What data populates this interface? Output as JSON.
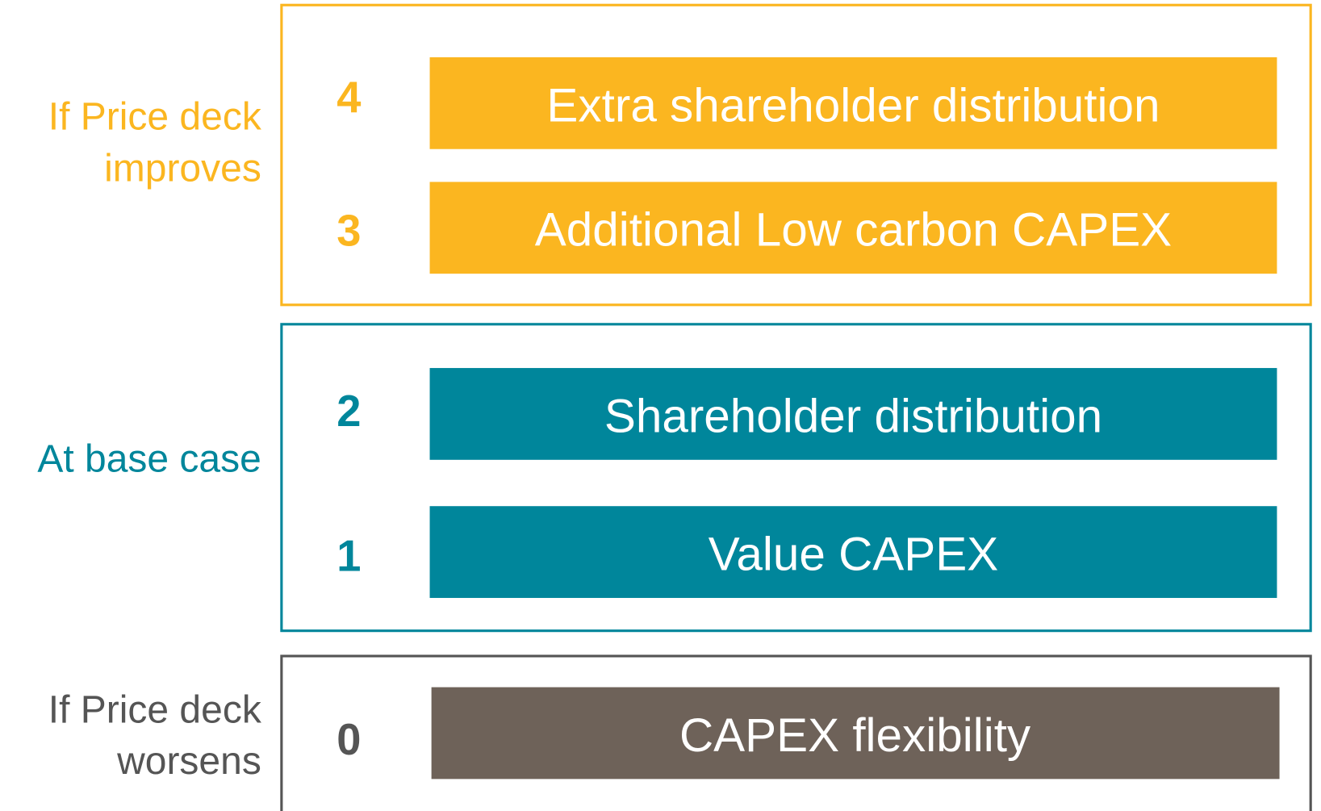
{
  "groups": [
    {
      "label": [
        "If Price deck",
        "improves"
      ],
      "items": [
        {
          "number": 4,
          "text": "Extra shareholder distribution"
        },
        {
          "number": 3,
          "text": "Additional Low carbon CAPEX"
        }
      ]
    },
    {
      "label": [
        "At base case"
      ],
      "items": [
        {
          "number": 2,
          "text": "Shareholder distribution"
        },
        {
          "number": 1,
          "text": "Value CAPEX"
        }
      ]
    },
    {
      "label": [
        "If Price deck",
        "worsens"
      ],
      "items": [
        {
          "number": 0,
          "text": "CAPEX flexibility"
        }
      ]
    }
  ]
}
